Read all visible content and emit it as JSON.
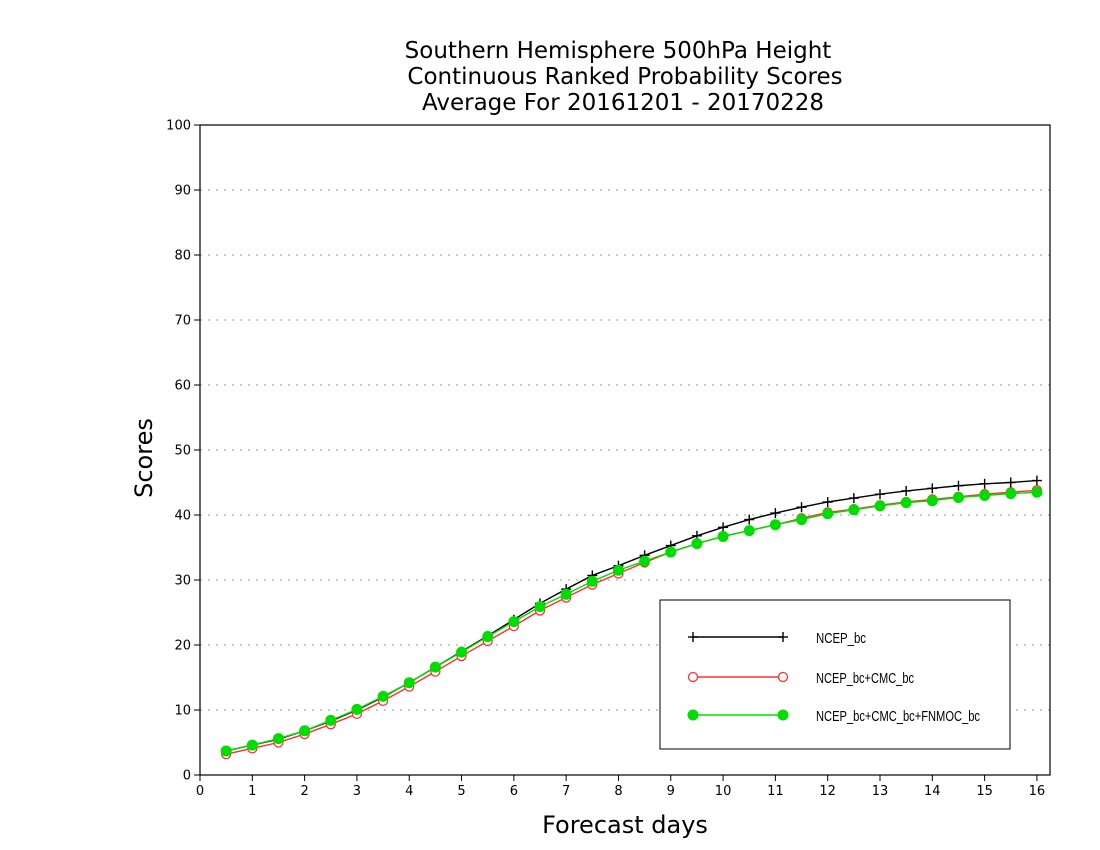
{
  "chart_data": {
    "type": "line",
    "title": [
      "Southern Hemisphere 500hPa Height",
      "Continuous Ranked Probability Scores",
      "Average For 20161201 - 20170228"
    ],
    "xlabel": "Forecast days",
    "ylabel": "Scores",
    "xlim": [
      0,
      16.25
    ],
    "ylim": [
      0,
      100
    ],
    "xticks": [
      "0",
      "1",
      "2",
      "3",
      "4",
      "5",
      "6",
      "7",
      "8",
      "9",
      "10",
      "11",
      "12",
      "13",
      "14",
      "15",
      "16"
    ],
    "yticks": [
      "0",
      "10",
      "20",
      "30",
      "40",
      "50",
      "60",
      "70",
      "80",
      "90",
      "100"
    ],
    "grid": "horizontal dotted",
    "legend_position": "lower-right",
    "x": [
      0.5,
      1,
      1.5,
      2,
      2.5,
      3,
      3.5,
      4,
      4.5,
      5,
      5.5,
      6,
      6.5,
      7,
      7.5,
      8,
      8.5,
      9,
      9.5,
      10,
      10.5,
      11,
      11.5,
      12,
      12.5,
      13,
      13.5,
      14,
      14.5,
      15,
      15.5,
      16
    ],
    "series": [
      {
        "name": "NCEP_bc",
        "color": "#000000",
        "marker": "plus",
        "values": [
          3.7,
          4.6,
          5.5,
          6.8,
          8.3,
          10.0,
          12.0,
          14.2,
          16.6,
          19.0,
          21.4,
          23.9,
          26.4,
          28.6,
          30.7,
          32.2,
          33.8,
          35.3,
          36.8,
          38.1,
          39.3,
          40.3,
          41.2,
          42.0,
          42.6,
          43.2,
          43.7,
          44.1,
          44.5,
          44.8,
          45.0,
          45.3
        ]
      },
      {
        "name": "NCEP_bc+CMC_bc",
        "color": "#ff3030",
        "marker": "open-circle",
        "values": [
          3.2,
          4.1,
          5.0,
          6.3,
          7.8,
          9.4,
          11.4,
          13.6,
          15.9,
          18.3,
          20.6,
          22.9,
          25.3,
          27.3,
          29.3,
          31.0,
          32.7,
          34.3,
          35.6,
          36.7,
          37.6,
          38.5,
          39.5,
          40.4,
          40.9,
          41.5,
          42.0,
          42.4,
          42.8,
          43.2,
          43.5,
          43.8
        ]
      },
      {
        "name": "NCEP_bc+CMC_bc+FNMOC_bc",
        "color": "#00dd00",
        "marker": "filled-circle",
        "values": [
          3.7,
          4.6,
          5.6,
          6.8,
          8.4,
          10.1,
          12.1,
          14.2,
          16.6,
          18.9,
          21.3,
          23.6,
          25.9,
          27.8,
          29.8,
          31.5,
          32.9,
          34.3,
          35.6,
          36.7,
          37.6,
          38.5,
          39.3,
          40.2,
          40.8,
          41.4,
          41.9,
          42.2,
          42.7,
          43.0,
          43.3,
          43.5
        ]
      }
    ]
  }
}
